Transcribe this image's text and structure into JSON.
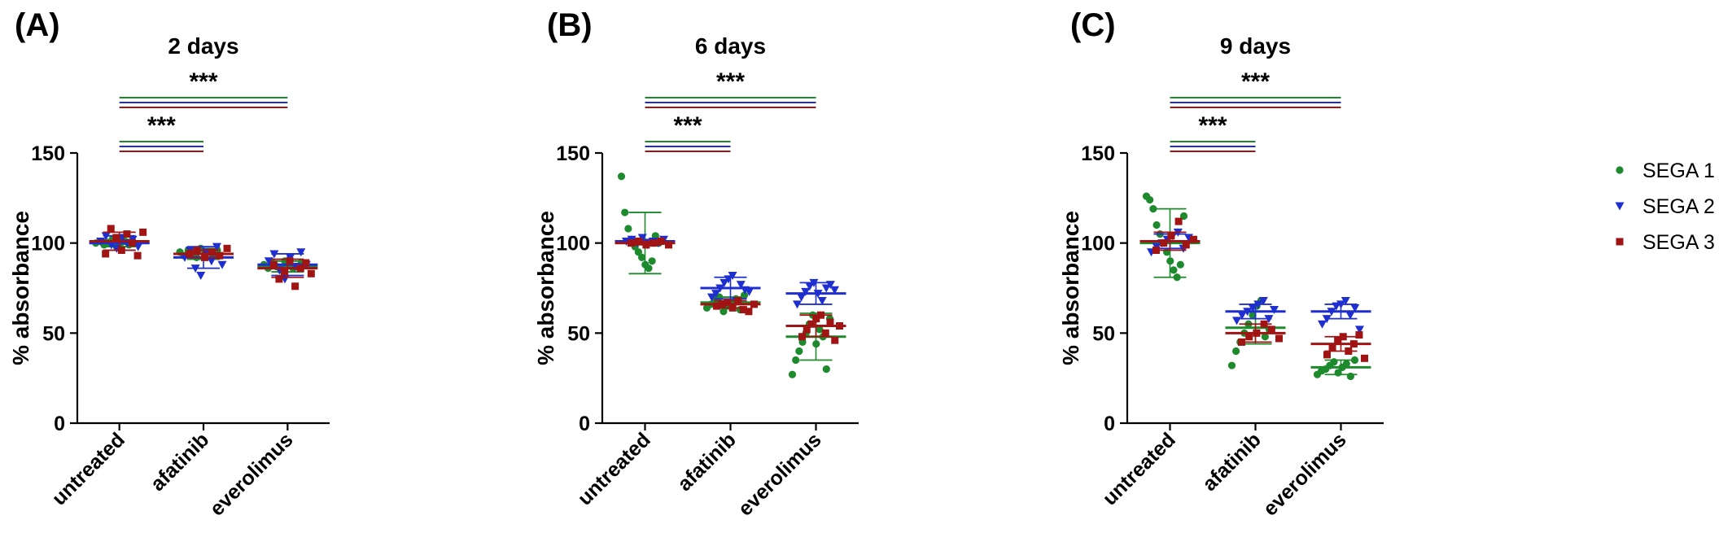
{
  "colors": {
    "SEGA 1": "#1e8a2e",
    "SEGA 2": "#1f2fcf",
    "SEGA 3": "#a01414",
    "axis": "#000000"
  },
  "legend": [
    {
      "name": "SEGA 1",
      "marker": "circle"
    },
    {
      "name": "SEGA 2",
      "marker": "triangle-down"
    },
    {
      "name": "SEGA 3",
      "marker": "square"
    }
  ],
  "chart_data": [
    {
      "type": "scatter",
      "panel_label": "(A)",
      "title": "2 days",
      "ylabel": "% absorbance",
      "ylim": [
        0,
        150
      ],
      "yticks": [
        0,
        50,
        100,
        150
      ],
      "categories": [
        "untreated",
        "afatinib",
        "everolimus"
      ],
      "series": [
        {
          "name": "SEGA 1",
          "mean": [
            100,
            94,
            87
          ],
          "sd": [
            2,
            3,
            3
          ],
          "points": [
            [
              100,
              101,
              99,
              100,
              102,
              98,
              100,
              101,
              99,
              100
            ],
            [
              95,
              93,
              96,
              94,
              92,
              97,
              94,
              95,
              93,
              96
            ],
            [
              88,
              86,
              89,
              87,
              85,
              90,
              88,
              86,
              87,
              89
            ]
          ]
        },
        {
          "name": "SEGA 2",
          "mean": [
            100,
            92,
            88
          ],
          "sd": [
            4,
            6,
            6
          ],
          "points": [
            [
              101,
              104,
              99,
              97,
              103,
              100,
              102,
              98
            ],
            [
              92,
              96,
              86,
              82,
              95,
              90,
              98,
              88
            ],
            [
              90,
              94,
              85,
              80,
              92,
              87,
              95,
              88
            ]
          ]
        },
        {
          "name": "SEGA 3",
          "mean": [
            101,
            94,
            86
          ],
          "sd": [
            5,
            2,
            5
          ],
          "points": [
            [
              94,
              108,
              103,
              96,
              105,
              100,
              93,
              106
            ],
            [
              94,
              96,
              92,
              95,
              93,
              97
            ],
            [
              88,
              80,
              84,
              90,
              76,
              86,
              89,
              83
            ]
          ]
        }
      ],
      "significance": [
        {
          "from": "untreated",
          "to": "afatinib",
          "label": "***",
          "level": 152
        },
        {
          "from": "untreated",
          "to": "everolimus",
          "label": "***",
          "level": 177
        }
      ]
    },
    {
      "type": "scatter",
      "panel_label": "(B)",
      "title": "6 days",
      "ylabel": "% absorbance",
      "ylim": [
        0,
        150
      ],
      "yticks": [
        0,
        50,
        100,
        150
      ],
      "categories": [
        "untreated",
        "afatinib",
        "everolimus"
      ],
      "series": [
        {
          "name": "SEGA 1",
          "mean": [
            100,
            67,
            48
          ],
          "sd": [
            17,
            3,
            13
          ],
          "points": [
            [
              137,
              117,
              108,
              102,
              98,
              95,
              92,
              88,
              86,
              90,
              104,
              100
            ],
            [
              64,
              66,
              68,
              70,
              62,
              65,
              67,
              69,
              63,
              71
            ],
            [
              27,
              35,
              40,
              45,
              50,
              55,
              60,
              44,
              52,
              48,
              30,
              58
            ]
          ]
        },
        {
          "name": "SEGA 2",
          "mean": [
            101,
            75,
            72
          ],
          "sd": [
            1,
            6,
            6
          ],
          "points": [
            [
              101,
              102,
              100,
              103,
              99,
              101,
              100,
              102
            ],
            [
              70,
              72,
              75,
              78,
              80,
              82,
              68,
              77,
              74,
              73
            ],
            [
              66,
              70,
              73,
              76,
              78,
              72,
              68,
              75,
              77,
              74
            ]
          ]
        },
        {
          "name": "SEGA 3",
          "mean": [
            100,
            66,
            54
          ],
          "sd": [
            1,
            2,
            6
          ],
          "points": [
            [
              100,
              101,
              99,
              100,
              101,
              99
            ],
            [
              65,
              66,
              67,
              64,
              68,
              63,
              62,
              66
            ],
            [
              48,
              52,
              55,
              58,
              60,
              50,
              56,
              46,
              54
            ]
          ]
        }
      ],
      "significance": [
        {
          "from": "untreated",
          "to": "afatinib",
          "label": "***",
          "level": 152
        },
        {
          "from": "untreated",
          "to": "everolimus",
          "label": "***",
          "level": 177
        }
      ]
    },
    {
      "type": "scatter",
      "panel_label": "(C)",
      "title": "9 days",
      "ylabel": "% absorbance",
      "ylim": [
        0,
        150
      ],
      "yticks": [
        0,
        50,
        100,
        150
      ],
      "categories": [
        "untreated",
        "afatinib",
        "everolimus"
      ],
      "series": [
        {
          "name": "SEGA 1",
          "mean": [
            100,
            53,
            31
          ],
          "sd": [
            19,
            9,
            4
          ],
          "points": [
            [
              126,
              124,
              119,
              110,
              105,
              100,
              95,
              90,
              85,
              81,
              88,
              115
            ],
            [
              32,
              40,
              45,
              50,
              55,
              60,
              65,
              68,
              48,
              52
            ],
            [
              27,
              29,
              30,
              32,
              34,
              28,
              31,
              33,
              26,
              35
            ]
          ]
        },
        {
          "name": "SEGA 2",
          "mean": [
            101,
            62,
            62
          ],
          "sd": [
            4,
            4,
            4
          ],
          "points": [
            [
              95,
              98,
              100,
              102,
              104,
              106,
              97,
              103
            ],
            [
              57,
              60,
              62,
              64,
              66,
              68,
              58,
              63
            ],
            [
              55,
              58,
              62,
              65,
              66,
              68,
              60,
              64,
              52
            ]
          ]
        },
        {
          "name": "SEGA 3",
          "mean": [
            101,
            50,
            44
          ],
          "sd": [
            5,
            5,
            4
          ],
          "points": [
            [
              96,
              100,
              104,
              112,
              99,
              102
            ],
            [
              45,
              48,
              50,
              55,
              52,
              47
            ],
            [
              38,
              42,
              46,
              48,
              40,
              44,
              49,
              36
            ]
          ]
        }
      ],
      "significance": [
        {
          "from": "untreated",
          "to": "afatinib",
          "label": "***",
          "level": 152
        },
        {
          "from": "untreated",
          "to": "everolimus",
          "label": "***",
          "level": 177
        }
      ]
    }
  ]
}
